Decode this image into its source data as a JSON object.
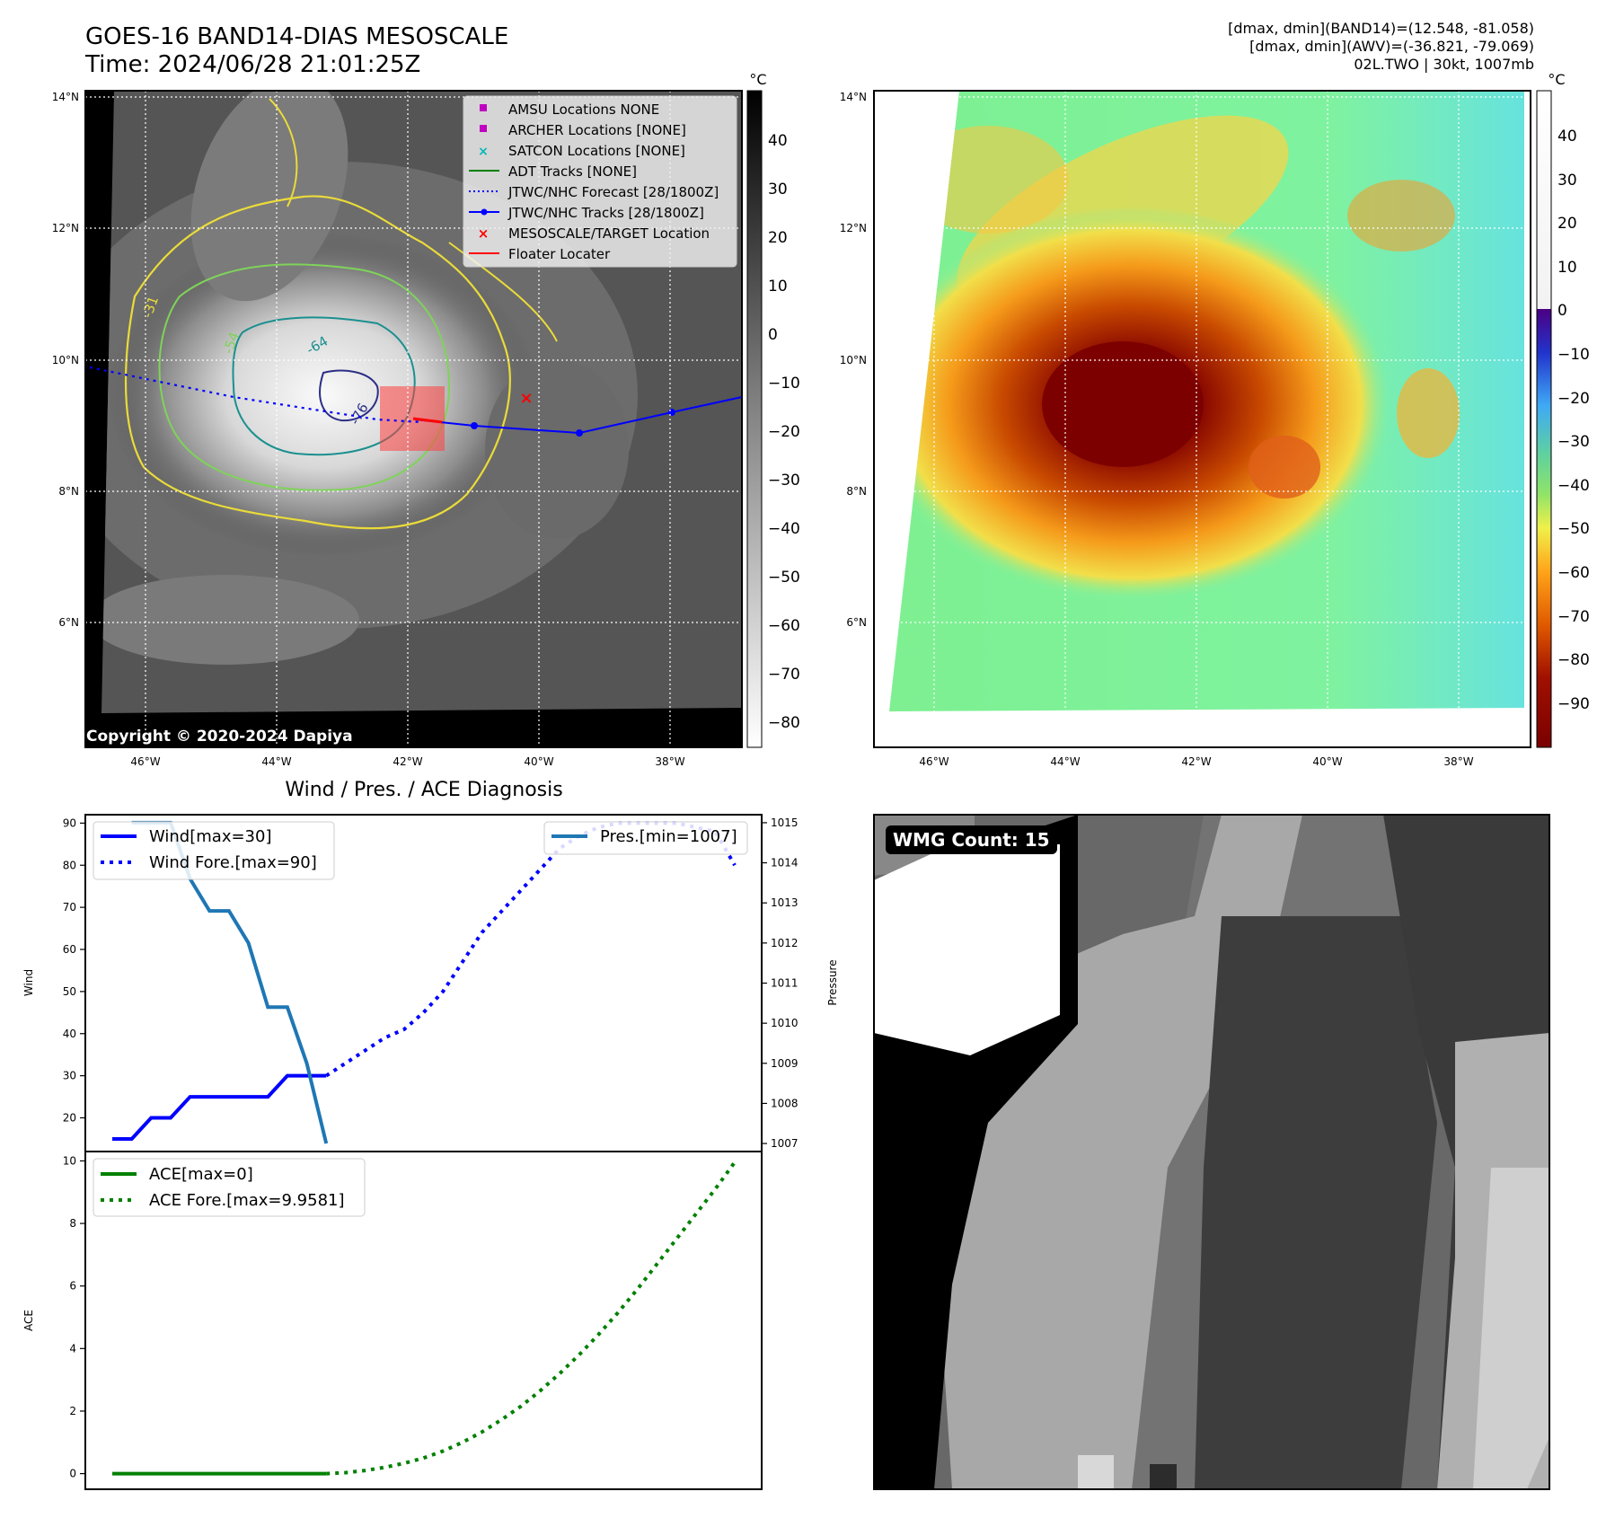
{
  "header": {
    "title_line1": "GOES-16 BAND14-DIAS MESOSCALE",
    "title_line2": "Time: 2024/06/28 21:01:25Z",
    "meta_line1": "[dmax, dmin](BAND14)=(12.548, -81.058)",
    "meta_line2": "[dmax, dmin](AWV)=(-36.821, -79.069)",
    "meta_line3": "02L.TWO | 30kt, 1007mb"
  },
  "ir_panel": {
    "colorbar_unit": "°C",
    "colorbar_ticks": [
      "40",
      "30",
      "20",
      "10",
      "0",
      "−10",
      "−20",
      "−30",
      "−40",
      "−50",
      "−60",
      "−70",
      "−80"
    ],
    "lat_labels": [
      "14°N",
      "12°N",
      "10°N",
      "8°N",
      "6°N"
    ],
    "lon_labels": [
      "46°W",
      "44°W",
      "42°W",
      "40°W",
      "38°W"
    ],
    "contour_labels": [
      "-31",
      "-54",
      "-64",
      "-76"
    ],
    "copyright": "Copyright © 2020-2024 Dapiya",
    "legend": [
      {
        "label": "AMSU Locations NONE",
        "color": "#c000c0",
        "symbol": "square"
      },
      {
        "label": "ARCHER Locations [NONE]",
        "color": "#c000c0",
        "symbol": "square"
      },
      {
        "label": "SATCON Locations [NONE]",
        "color": "#00b8b8",
        "symbol": "x"
      },
      {
        "label": "ADT Tracks [NONE]",
        "color": "#008000",
        "symbol": "line"
      },
      {
        "label": "JTWC/NHC Forecast [28/1800Z]",
        "color": "#0000ff",
        "symbol": "dotted"
      },
      {
        "label": "JTWC/NHC Tracks [28/1800Z]",
        "color": "#0000ff",
        "symbol": "line-dot"
      },
      {
        "label": "MESOSCALE/TARGET Location",
        "color": "#ff0000",
        "symbol": "x"
      },
      {
        "label": "Floater Locater",
        "color": "#ff0000",
        "symbol": "line"
      }
    ]
  },
  "awv_panel": {
    "colorbar_unit": "°C",
    "colorbar_ticks": [
      "40",
      "30",
      "20",
      "10",
      "0",
      "−10",
      "−20",
      "−30",
      "−40",
      "−50",
      "−60",
      "−70",
      "−80",
      "−90"
    ],
    "lat_labels": [
      "14°N",
      "12°N",
      "10°N",
      "8°N",
      "6°N"
    ],
    "lon_labels": [
      "46°W",
      "44°W",
      "42°W",
      "40°W",
      "38°W"
    ]
  },
  "wmg_panel": {
    "label": "WMG Count: 15"
  },
  "chart_data": [
    {
      "type": "line",
      "title": "Wind / Pres. / ACE Diagnosis",
      "ylabel": "Wind",
      "ylabel_right": "Pressure",
      "ylim": [
        12,
        92
      ],
      "ylim_right": [
        1006.8,
        1015.2
      ],
      "yticks": [
        20,
        30,
        40,
        50,
        60,
        70,
        80,
        90
      ],
      "yticks_right": [
        1007,
        1008,
        1009,
        1010,
        1011,
        1012,
        1013,
        1014,
        1015
      ],
      "legend_left": [
        "Wind[max=30]",
        "Wind Fore.[max=90]"
      ],
      "legend_right": [
        "Pres.[min=1007]"
      ],
      "series": [
        {
          "name": "Wind[max=30]",
          "color": "#0000ff",
          "style": "solid",
          "axis": "left",
          "x": [
            0,
            1,
            2,
            3,
            4,
            5,
            6,
            7,
            8,
            9,
            10,
            11
          ],
          "values": [
            15,
            15,
            20,
            20,
            25,
            25,
            25,
            25,
            25,
            30,
            30,
            30
          ]
        },
        {
          "name": "Wind Fore.[max=90]",
          "color": "#0000ff",
          "style": "dotted",
          "axis": "left",
          "x": [
            11,
            12,
            13,
            14,
            15,
            16,
            17,
            18,
            19,
            20,
            21,
            22,
            23,
            24,
            25,
            26,
            27,
            28,
            29,
            30,
            31,
            32
          ],
          "values": [
            30,
            33,
            36,
            39,
            41,
            45,
            50,
            57,
            64,
            69,
            74,
            79,
            84,
            87,
            89,
            90,
            90,
            90,
            90,
            89,
            88,
            80
          ]
        },
        {
          "name": "Pres.[min=1007]",
          "color": "#1f77b4",
          "style": "solid",
          "axis": "right",
          "x": [
            1,
            2,
            3,
            4,
            5,
            6,
            7,
            8,
            9,
            10,
            11
          ],
          "values": [
            1015,
            1015,
            1015,
            1013.6,
            1012.8,
            1012.8,
            1012.0,
            1010.4,
            1010.4,
            1009.0,
            1007
          ]
        }
      ]
    },
    {
      "type": "line",
      "ylabel": "ACE",
      "ylim": [
        -0.5,
        10.3
      ],
      "yticks": [
        0,
        2,
        4,
        6,
        8,
        10
      ],
      "legend": [
        "ACE[max=0]",
        "ACE Fore.[max=9.9581]"
      ],
      "series": [
        {
          "name": "ACE[max=0]",
          "color": "#008000",
          "style": "solid",
          "x": [
            0,
            11
          ],
          "values": [
            0,
            0
          ]
        },
        {
          "name": "ACE Fore.[max=9.9581]",
          "color": "#008000",
          "style": "dotted",
          "x": [
            11,
            12,
            13,
            14,
            15,
            16,
            17,
            18,
            19,
            20,
            21,
            22,
            23,
            24,
            25,
            26,
            27,
            28,
            29,
            30,
            31,
            32
          ],
          "values": [
            0,
            0.03,
            0.1,
            0.2,
            0.33,
            0.5,
            0.72,
            1.0,
            1.33,
            1.72,
            2.15,
            2.65,
            3.2,
            3.8,
            4.45,
            5.15,
            5.9,
            6.7,
            7.5,
            8.3,
            9.1,
            9.958
          ]
        }
      ]
    }
  ]
}
